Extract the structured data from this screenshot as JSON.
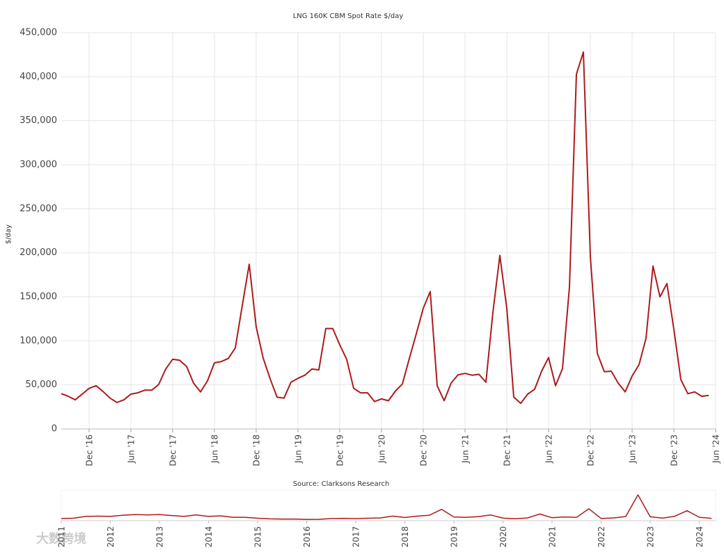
{
  "chart_data": [
    {
      "type": "line",
      "title": "LNG 160K CBM Spot Rate $/day",
      "y_label": "$/day",
      "source": "Source: Clarksons Research",
      "xlim": [
        "2016-08",
        "2024-06"
      ],
      "xticks": [
        {
          "value": "2016-12",
          "label": "Dec '16"
        },
        {
          "value": "2017-06",
          "label": "Jun '17"
        },
        {
          "value": "2017-12",
          "label": "Dec '17"
        },
        {
          "value": "2018-06",
          "label": "Jun '18"
        },
        {
          "value": "2018-12",
          "label": "Dec '18"
        },
        {
          "value": "2019-06",
          "label": "Jun '19"
        },
        {
          "value": "2019-12",
          "label": "Dec '19"
        },
        {
          "value": "2020-06",
          "label": "Jun '20"
        },
        {
          "value": "2020-12",
          "label": "Dec '20"
        },
        {
          "value": "2021-06",
          "label": "Jun '21"
        },
        {
          "value": "2021-12",
          "label": "Dec '21"
        },
        {
          "value": "2022-06",
          "label": "Jun '22"
        },
        {
          "value": "2022-12",
          "label": "Dec '22"
        },
        {
          "value": "2023-06",
          "label": "Jun '23"
        },
        {
          "value": "2023-12",
          "label": "Dec '23"
        },
        {
          "value": "2024-06",
          "label": "Jun '24"
        }
      ],
      "ylim": [
        0,
        450000
      ],
      "yticks": [
        0,
        {
          "value": 50000,
          "label": "50,000"
        },
        {
          "value": 100000,
          "label": "100,000"
        },
        {
          "value": 150000,
          "label": "150,000"
        },
        {
          "value": 200000,
          "label": "200,000"
        },
        {
          "value": 250000,
          "label": "250,000"
        },
        {
          "value": 300000,
          "label": "300,000"
        },
        {
          "value": 350000,
          "label": "350,000"
        },
        {
          "value": 400000,
          "label": "400,000"
        },
        {
          "value": 450000,
          "label": "450,000"
        }
      ],
      "grid": true,
      "x": [
        "2016-08",
        "2016-09",
        "2016-10",
        "2016-11",
        "2016-12",
        "2017-01",
        "2017-02",
        "2017-03",
        "2017-04",
        "2017-05",
        "2017-06",
        "2017-07",
        "2017-08",
        "2017-09",
        "2017-10",
        "2017-11",
        "2017-12",
        "2018-01",
        "2018-02",
        "2018-03",
        "2018-04",
        "2018-05",
        "2018-06",
        "2018-07",
        "2018-08",
        "2018-09",
        "2018-10",
        "2018-11",
        "2018-12",
        "2019-01",
        "2019-02",
        "2019-03",
        "2019-04",
        "2019-05",
        "2019-06",
        "2019-07",
        "2019-08",
        "2019-09",
        "2019-10",
        "2019-11",
        "2019-12",
        "2020-01",
        "2020-02",
        "2020-03",
        "2020-04",
        "2020-05",
        "2020-06",
        "2020-07",
        "2020-08",
        "2020-09",
        "2020-10",
        "2020-11",
        "2020-12",
        "2021-01",
        "2021-02",
        "2021-03",
        "2021-04",
        "2021-05",
        "2021-06",
        "2021-07",
        "2021-08",
        "2021-09",
        "2021-10",
        "2021-11",
        "2021-12",
        "2022-01",
        "2022-02",
        "2022-03",
        "2022-04",
        "2022-05",
        "2022-06",
        "2022-07",
        "2022-08",
        "2022-09",
        "2022-10",
        "2022-11",
        "2022-12",
        "2023-01",
        "2023-02",
        "2023-03",
        "2023-04",
        "2023-05",
        "2023-06",
        "2023-07",
        "2023-08",
        "2023-09",
        "2023-10",
        "2023-11",
        "2023-12",
        "2024-01",
        "2024-02",
        "2024-03",
        "2024-04",
        "2024-05"
      ],
      "series": [
        {
          "name": "LNG 160K CBM Spot Rate",
          "color": "#ad1a1a",
          "values": [
            40000,
            37000,
            33000,
            39500,
            46000,
            49000,
            42500,
            35000,
            30000,
            33000,
            39500,
            41000,
            44000,
            44000,
            50500,
            68000,
            79000,
            78000,
            71000,
            52000,
            42000,
            54500,
            75000,
            76500,
            80000,
            92000,
            140000,
            187000,
            116000,
            80500,
            57000,
            36000,
            35000,
            53000,
            57500,
            61000,
            68000,
            67000,
            114000,
            114000,
            95500,
            79000,
            46000,
            41000,
            41000,
            31000,
            34000,
            32000,
            43000,
            51000,
            80000,
            108000,
            137000,
            156000,
            49000,
            32000,
            52000,
            61500,
            63000,
            61000,
            62000,
            53000,
            132000,
            197000,
            137000,
            36000,
            29000,
            39500,
            45000,
            65500,
            81000,
            49000,
            68500,
            161000,
            403000,
            428000,
            196000,
            86000,
            65000,
            65500,
            52000,
            42000,
            60000,
            73000,
            103000,
            185000,
            150000,
            165000,
            113000,
            56000,
            40000,
            42000,
            37000,
            38000
          ]
        }
      ]
    },
    {
      "type": "navigator",
      "xlim": [
        "2011-01",
        "2024-05"
      ],
      "xticks": [
        {
          "value": "2011",
          "label": "2011"
        },
        {
          "value": "2012",
          "label": "2012"
        },
        {
          "value": "2013",
          "label": "2013"
        },
        {
          "value": "2014",
          "label": "2014"
        },
        {
          "value": "2015",
          "label": "2015"
        },
        {
          "value": "2016",
          "label": "2016"
        },
        {
          "value": "2017",
          "label": "2017"
        },
        {
          "value": "2018",
          "label": "2018"
        },
        {
          "value": "2019",
          "label": "2019"
        },
        {
          "value": "2020",
          "label": "2020"
        },
        {
          "value": "2021",
          "label": "2021"
        },
        {
          "value": "2022",
          "label": "2022"
        },
        {
          "value": "2023",
          "label": "2023"
        },
        {
          "value": "2024",
          "label": "2024"
        }
      ],
      "ylim": [
        0,
        450000
      ],
      "x": [
        "2011-01",
        "2011-04",
        "2011-07",
        "2011-10",
        "2012-01",
        "2012-04",
        "2012-07",
        "2012-10",
        "2013-01",
        "2013-04",
        "2013-07",
        "2013-10",
        "2014-01",
        "2014-04",
        "2014-07",
        "2014-10",
        "2015-01",
        "2015-04",
        "2015-07",
        "2015-10",
        "2016-01",
        "2016-04",
        "2016-07",
        "2016-10",
        "2017-01",
        "2017-04",
        "2017-07",
        "2017-10",
        "2018-01",
        "2018-04",
        "2018-07",
        "2018-10",
        "2019-01",
        "2019-04",
        "2019-07",
        "2019-10",
        "2020-01",
        "2020-04",
        "2020-07",
        "2020-10",
        "2021-01",
        "2021-04",
        "2021-07",
        "2021-10",
        "2022-01",
        "2022-04",
        "2022-07",
        "2022-10",
        "2023-01",
        "2023-04",
        "2023-07",
        "2023-10",
        "2024-01",
        "2024-04"
      ],
      "series": [
        {
          "name": "LNG 160K CBM Spot Rate",
          "color": "#ad1a1a",
          "values": [
            35000,
            40000,
            70000,
            75000,
            70000,
            90000,
            100000,
            95000,
            100000,
            85000,
            70000,
            95000,
            70000,
            80000,
            55000,
            55000,
            40000,
            30000,
            25000,
            25000,
            20000,
            22000,
            35000,
            38000,
            33000,
            40000,
            45000,
            75000,
            52000,
            75000,
            90000,
            187000,
            60000,
            55000,
            67000,
            95000,
            41000,
            31000,
            45000,
            110000,
            49000,
            61000,
            55000,
            197000,
            36000,
            45000,
            68000,
            428000,
            65000,
            42000,
            73000,
            165000,
            56000,
            37000
          ]
        }
      ]
    }
  ],
  "watermark": "大数跨境"
}
